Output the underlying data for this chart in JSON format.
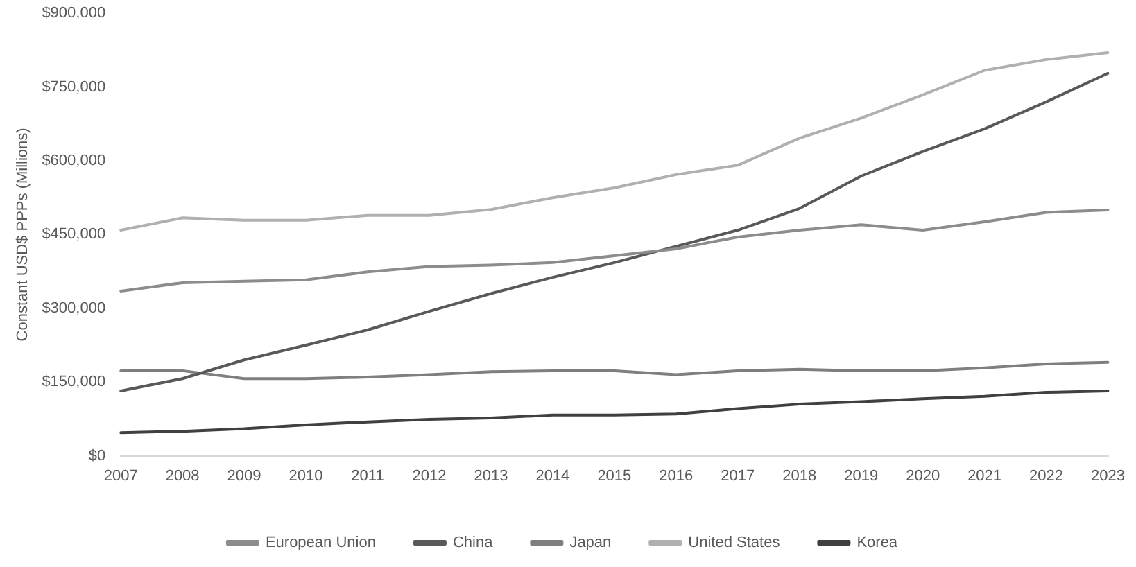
{
  "chart_data": {
    "type": "line",
    "ylabel": "Constant USD$ PPPs (Millions)",
    "categories": [
      "2007",
      "2008",
      "2009",
      "2010",
      "2011",
      "2012",
      "2013",
      "2014",
      "2015",
      "2016",
      "2017",
      "2018",
      "2019",
      "2020",
      "2021",
      "2022",
      "2023"
    ],
    "series": [
      {
        "name": "European Union",
        "color": "#8c8c8c",
        "values": [
          335000,
          352000,
          355000,
          358000,
          374000,
          385000,
          388000,
          393000,
          407000,
          421000,
          445000,
          459000,
          470000,
          459000,
          476000,
          495000,
          500000
        ]
      },
      {
        "name": "China",
        "color": "#595959",
        "values": [
          132000,
          157000,
          195000,
          225000,
          256000,
          294000,
          330000,
          363000,
          393000,
          426000,
          459000,
          503000,
          569000,
          619000,
          665000,
          720000,
          778000
        ]
      },
      {
        "name": "Japan",
        "color": "#7f7f7f",
        "values": [
          173000,
          173000,
          157000,
          157000,
          160000,
          165000,
          171000,
          173000,
          173000,
          165000,
          173000,
          176000,
          173000,
          173000,
          179000,
          187000,
          190000
        ]
      },
      {
        "name": "United States",
        "color": "#b0b0b0",
        "values": [
          459000,
          484000,
          479000,
          479000,
          489000,
          489000,
          501000,
          525000,
          545000,
          572000,
          591000,
          646000,
          687000,
          734000,
          784000,
          806000,
          820000
        ]
      },
      {
        "name": "Korea",
        "color": "#404040",
        "values": [
          47000,
          50000,
          55000,
          63000,
          69000,
          74000,
          77000,
          83000,
          83000,
          85000,
          96000,
          105000,
          110000,
          116000,
          121000,
          129000,
          132000
        ]
      }
    ],
    "ylim": [
      0,
      900000
    ],
    "yticks": [
      {
        "value": 0,
        "label": "$0"
      },
      {
        "value": 150000,
        "label": "$150,000"
      },
      {
        "value": 300000,
        "label": "$300,000"
      },
      {
        "value": 450000,
        "label": "$450,000"
      },
      {
        "value": 600000,
        "label": "$600,000"
      },
      {
        "value": 750000,
        "label": "$750,000"
      },
      {
        "value": 900000,
        "label": "$900,000"
      }
    ],
    "grid": false,
    "legend": "bottom",
    "marker": "none",
    "line_style": "solid"
  }
}
